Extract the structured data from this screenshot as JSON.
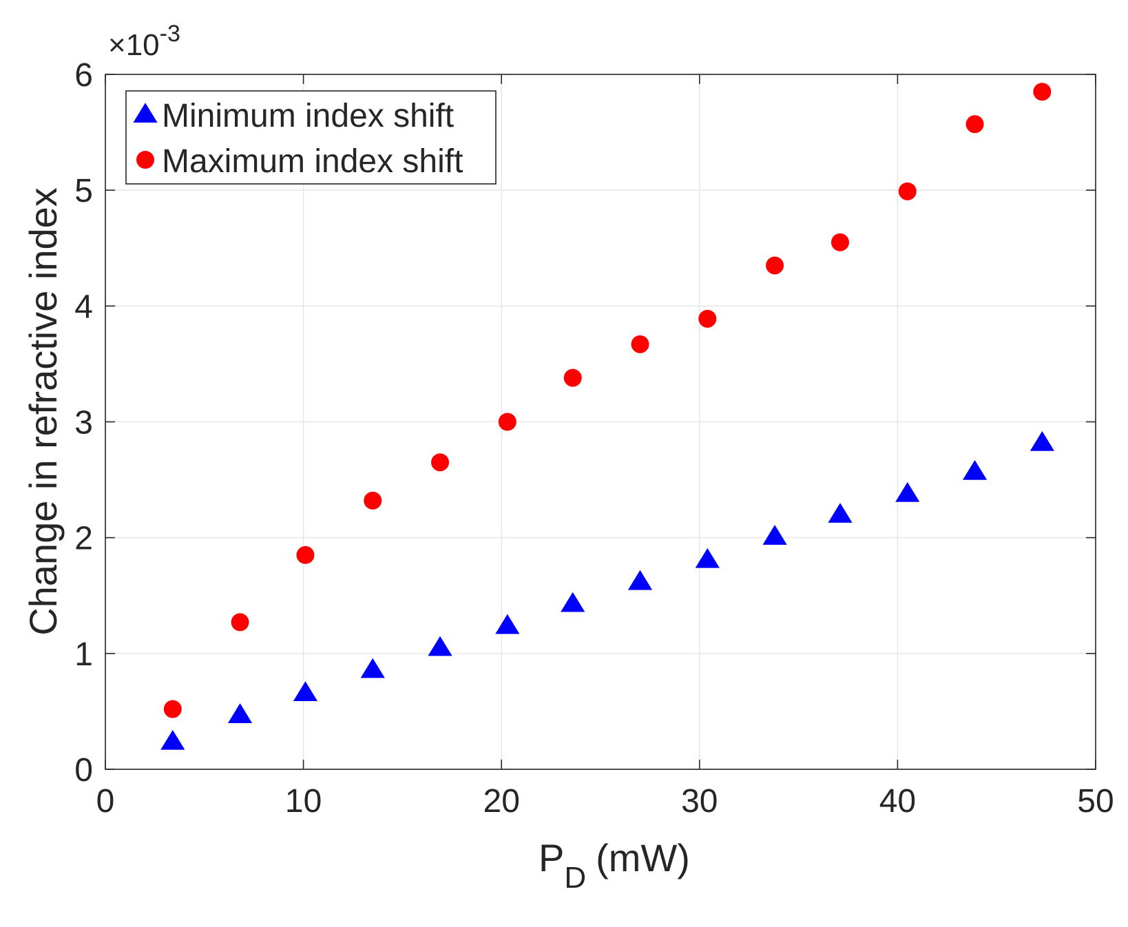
{
  "chart_data": {
    "type": "scatter",
    "title": "",
    "xlabel": {
      "main": "P",
      "subscript": "D",
      "unit": "(mW)"
    },
    "ylabel": "Change in refractive index",
    "y_exponent": {
      "prefix": "×10",
      "power": "-3"
    },
    "xlim": [
      0,
      50
    ],
    "ylim": [
      0,
      6
    ],
    "xticks": [
      0,
      10,
      20,
      30,
      40,
      50
    ],
    "yticks": [
      0,
      1,
      2,
      3,
      4,
      5,
      6
    ],
    "grid": true,
    "legend_position": "top-left",
    "series": [
      {
        "name": "Minimum index shift",
        "marker": "triangle",
        "color": "#0000ff",
        "x": [
          3.4,
          6.8,
          10.1,
          13.5,
          16.9,
          20.3,
          23.6,
          27.0,
          30.4,
          33.8,
          37.1,
          40.5,
          43.9,
          47.3
        ],
        "y": [
          0.24,
          0.47,
          0.66,
          0.86,
          1.05,
          1.24,
          1.43,
          1.62,
          1.81,
          2.01,
          2.2,
          2.38,
          2.57,
          2.82
        ]
      },
      {
        "name": "Maximum index shift",
        "marker": "circle",
        "color": "#ff0000",
        "x": [
          3.4,
          6.8,
          10.1,
          13.5,
          16.9,
          20.3,
          23.6,
          27.0,
          30.4,
          33.8,
          37.1,
          40.5,
          43.9,
          47.3
        ],
        "y": [
          0.52,
          1.27,
          1.85,
          2.32,
          2.65,
          3.0,
          3.38,
          3.67,
          3.89,
          4.35,
          4.55,
          4.99,
          5.57,
          5.85
        ]
      }
    ]
  }
}
